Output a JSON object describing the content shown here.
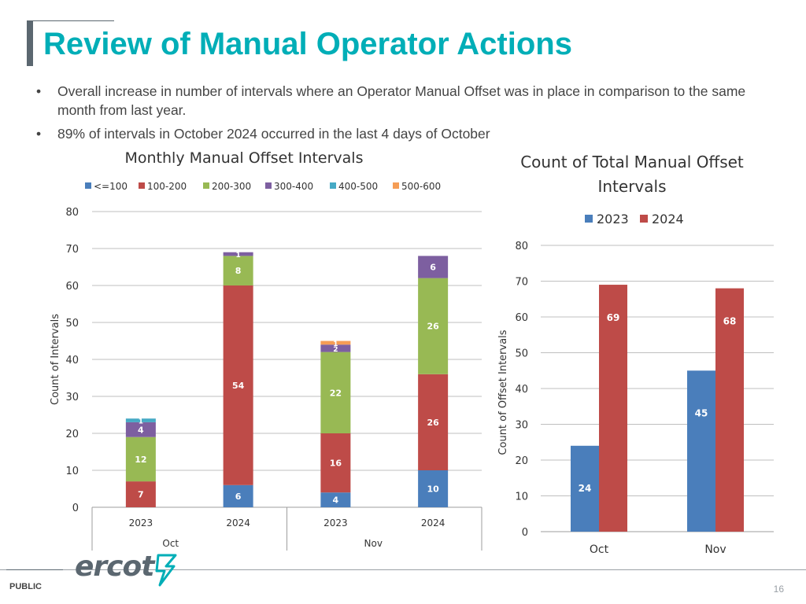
{
  "slide": {
    "title": "Review of Manual Operator Actions",
    "bullets": [
      "Overall increase in number of intervals where an Operator Manual Offset was in place in comparison to the same month from last year.",
      "89% of intervals in October 2024 occurred in the last 4 days of October"
    ],
    "bullet_glyph": "•",
    "footer_label": "PUBLIC",
    "page_number": "16",
    "logo_text": "ercot"
  },
  "colors": {
    "title": "#00aeb7",
    "le100": "#4a7ebb",
    "r100_200": "#be4b48",
    "r200_300": "#98b954",
    "r300_400": "#7d5fa0",
    "r400_500": "#46aac5",
    "r500_600": "#f59d56",
    "grid": "#bfbfbf"
  },
  "chart_data": [
    {
      "type": "bar",
      "stacked": true,
      "title": "Monthly Manual Offset Intervals",
      "ylabel": "Count of Intervals",
      "xlabel": "",
      "ylim": [
        0,
        80
      ],
      "yticks": [
        0,
        10,
        20,
        30,
        40,
        50,
        60,
        70,
        80
      ],
      "legend_position": "top",
      "categories": [
        "2023",
        "2024",
        "2023",
        "2024"
      ],
      "groups": [
        {
          "label": "Oct",
          "span": [
            0,
            1
          ]
        },
        {
          "label": "Nov",
          "span": [
            2,
            3
          ]
        }
      ],
      "series": [
        {
          "name": "<=100",
          "color": "#4a7ebb",
          "values": [
            0,
            6,
            4,
            10
          ]
        },
        {
          "name": "100-200",
          "color": "#be4b48",
          "values": [
            7,
            54,
            16,
            26
          ]
        },
        {
          "name": "200-300",
          "color": "#98b954",
          "values": [
            12,
            8,
            22,
            26
          ]
        },
        {
          "name": "300-400",
          "color": "#7d5fa0",
          "values": [
            4,
            1,
            2,
            6
          ]
        },
        {
          "name": "400-500",
          "color": "#46aac5",
          "values": [
            1,
            0,
            0,
            0
          ]
        },
        {
          "name": "500-600",
          "color": "#f59d56",
          "values": [
            0,
            0,
            1,
            0
          ]
        }
      ]
    },
    {
      "type": "bar",
      "stacked": false,
      "title": "Count of Total Manual Offset Intervals",
      "title_lines": [
        "Count of Total Manual Offset",
        "Intervals"
      ],
      "ylabel": "Count of Offset Intervals",
      "xlabel": "",
      "ylim": [
        0,
        80
      ],
      "yticks": [
        0,
        10,
        20,
        30,
        40,
        50,
        60,
        70,
        80
      ],
      "legend_position": "top",
      "categories": [
        "Oct",
        "Nov"
      ],
      "series": [
        {
          "name": "2023",
          "color": "#4a7ebb",
          "values": [
            24,
            45
          ]
        },
        {
          "name": "2024",
          "color": "#be4b48",
          "values": [
            69,
            68
          ]
        }
      ]
    }
  ]
}
